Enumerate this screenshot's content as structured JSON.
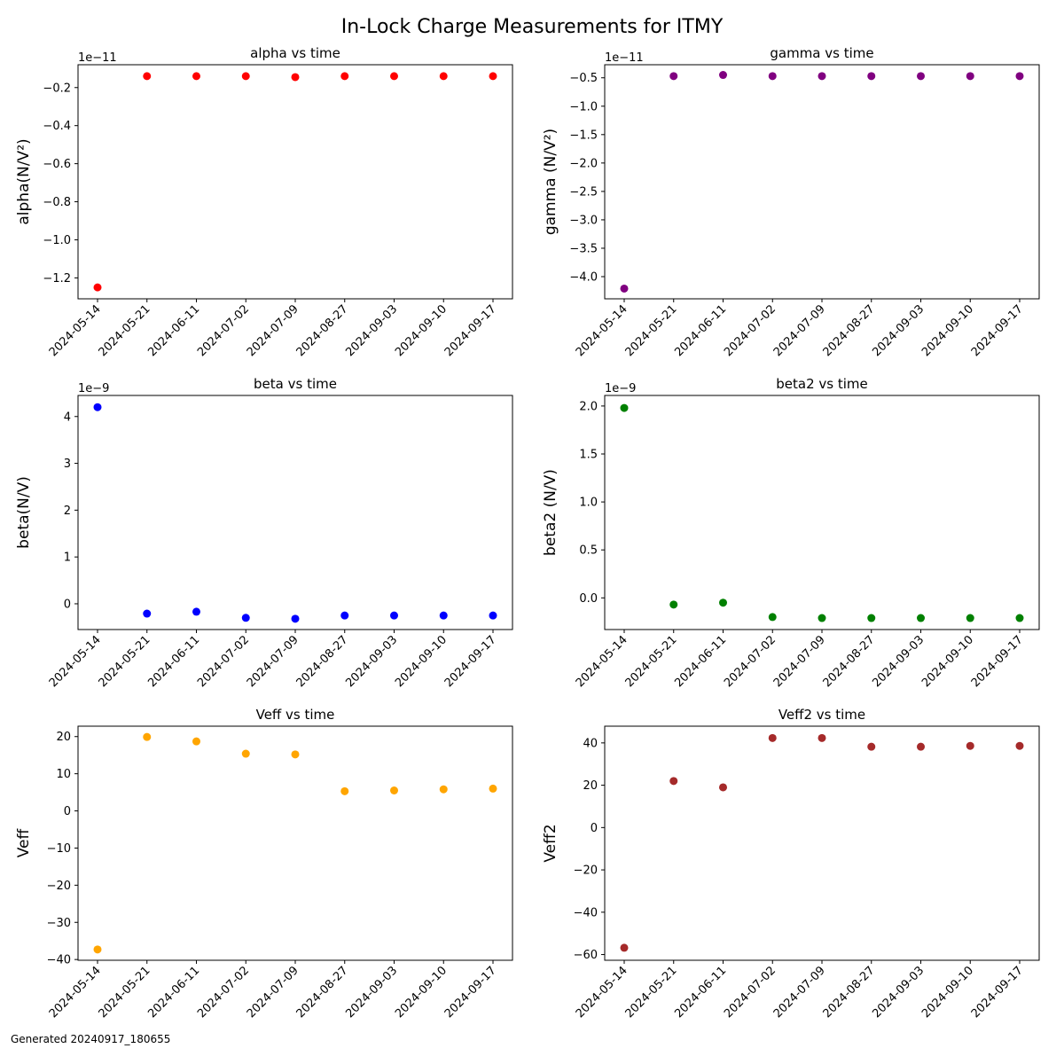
{
  "figure": {
    "title": "In-Lock Charge Measurements for ITMY",
    "footer": "Generated 20240917_180655"
  },
  "chart_data": [
    {
      "type": "scatter",
      "title": "alpha vs time",
      "xlabel": "",
      "ylabel": "alpha(N/V²)",
      "offset_label": "1e−11",
      "color": "#ff0000",
      "x": [
        "2024-05-14",
        "2024-05-21",
        "2024-06-11",
        "2024-07-02",
        "2024-07-09",
        "2024-08-27",
        "2024-09-03",
        "2024-09-10",
        "2024-09-17"
      ],
      "y": [
        -1.25,
        -0.14,
        -0.14,
        -0.14,
        -0.145,
        -0.14,
        -0.14,
        -0.14,
        -0.14
      ],
      "ylim": [
        -1.31,
        -0.08
      ],
      "yticks": [
        -0.2,
        -0.4,
        -0.6,
        -0.8,
        -1.0,
        -1.2
      ],
      "ytick_labels": [
        "−0.2",
        "−0.4",
        "−0.6",
        "−0.8",
        "−1.0",
        "−1.2"
      ]
    },
    {
      "type": "scatter",
      "title": "gamma vs time",
      "xlabel": "",
      "ylabel": "gamma (N/V²)",
      "offset_label": "1e−11",
      "color": "#800080",
      "x": [
        "2024-05-14",
        "2024-05-21",
        "2024-06-11",
        "2024-07-02",
        "2024-07-09",
        "2024-08-27",
        "2024-09-03",
        "2024-09-10",
        "2024-09-17"
      ],
      "y": [
        -4.21,
        -0.47,
        -0.45,
        -0.47,
        -0.47,
        -0.47,
        -0.47,
        -0.47,
        -0.47
      ],
      "ylim": [
        -4.39,
        -0.27
      ],
      "yticks": [
        -0.5,
        -1.0,
        -1.5,
        -2.0,
        -2.5,
        -3.0,
        -3.5,
        -4.0
      ],
      "ytick_labels": [
        "−0.5",
        "−1.0",
        "−1.5",
        "−2.0",
        "−2.5",
        "−3.0",
        "−3.5",
        "−4.0"
      ]
    },
    {
      "type": "scatter",
      "title": "beta vs time",
      "xlabel": "",
      "ylabel": "beta(N/V)",
      "offset_label": "1e−9",
      "color": "#0000ff",
      "x": [
        "2024-05-14",
        "2024-05-21",
        "2024-06-11",
        "2024-07-02",
        "2024-07-09",
        "2024-08-27",
        "2024-09-03",
        "2024-09-10",
        "2024-09-17"
      ],
      "y": [
        4.2,
        -0.21,
        -0.17,
        -0.3,
        -0.32,
        -0.25,
        -0.25,
        -0.25,
        -0.25
      ],
      "ylim": [
        -0.55,
        4.45
      ],
      "yticks": [
        0,
        1,
        2,
        3,
        4
      ],
      "ytick_labels": [
        "0",
        "1",
        "2",
        "3",
        "4"
      ]
    },
    {
      "type": "scatter",
      "title": "beta2 vs time",
      "xlabel": "",
      "ylabel": "beta2 (N/V)",
      "offset_label": "1e−9",
      "color": "#008000",
      "x": [
        "2024-05-14",
        "2024-05-21",
        "2024-06-11",
        "2024-07-02",
        "2024-07-09",
        "2024-08-27",
        "2024-09-03",
        "2024-09-10",
        "2024-09-17"
      ],
      "y": [
        1.98,
        -0.07,
        -0.05,
        -0.2,
        -0.21,
        -0.21,
        -0.21,
        -0.21,
        -0.21
      ],
      "ylim": [
        -0.33,
        2.11
      ],
      "yticks": [
        0.0,
        0.5,
        1.0,
        1.5,
        2.0
      ],
      "ytick_labels": [
        "0.0",
        "0.5",
        "1.0",
        "1.5",
        "2.0"
      ]
    },
    {
      "type": "scatter",
      "title": "Veff vs time",
      "xlabel": "",
      "ylabel": "Veff",
      "offset_label": "",
      "color": "#ffa500",
      "x": [
        "2024-05-14",
        "2024-05-21",
        "2024-06-11",
        "2024-07-02",
        "2024-07-09",
        "2024-08-27",
        "2024-09-03",
        "2024-09-10",
        "2024-09-17"
      ],
      "y": [
        -37.3,
        19.9,
        18.7,
        15.4,
        15.2,
        5.3,
        5.5,
        5.8,
        6.0
      ],
      "ylim": [
        -40.2,
        22.8
      ],
      "yticks": [
        20,
        10,
        0,
        -10,
        -20,
        -30,
        -40
      ],
      "ytick_labels": [
        "20",
        "10",
        "0",
        "−10",
        "−20",
        "−30",
        "−40"
      ]
    },
    {
      "type": "scatter",
      "title": "Veff2 vs time",
      "xlabel": "",
      "ylabel": "Veff2",
      "offset_label": "",
      "color": "#a52a2a",
      "x": [
        "2024-05-14",
        "2024-05-21",
        "2024-06-11",
        "2024-07-02",
        "2024-07-09",
        "2024-08-27",
        "2024-09-03",
        "2024-09-10",
        "2024-09-17"
      ],
      "y": [
        -56.8,
        22.0,
        19.0,
        42.3,
        42.3,
        38.2,
        38.2,
        38.6,
        38.6
      ],
      "ylim": [
        -62.7,
        47.9
      ],
      "yticks": [
        40,
        20,
        0,
        -20,
        -40,
        -60
      ],
      "ytick_labels": [
        "40",
        "20",
        "0",
        "−20",
        "−40",
        "−60"
      ]
    }
  ]
}
